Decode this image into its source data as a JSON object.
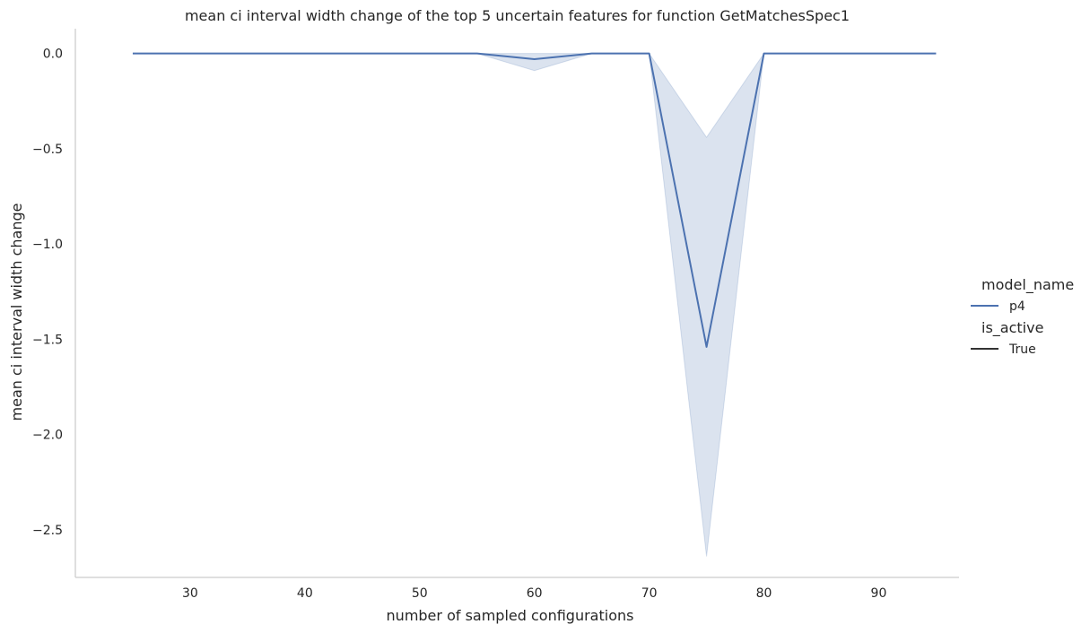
{
  "chart_data": {
    "type": "line",
    "title": "mean ci interval width change of the top 5 uncertain features for function GetMatchesSpec1",
    "xlabel": "number of sampled configurations",
    "ylabel": "mean ci interval width change",
    "xlim": [
      20,
      97
    ],
    "ylim": [
      -2.75,
      0.13
    ],
    "xticks": [
      30,
      40,
      50,
      60,
      70,
      80,
      90
    ],
    "yticks": [
      0.0,
      -0.5,
      -1.0,
      -1.5,
      -2.0,
      -2.5
    ],
    "ytick_labels": [
      "0.0",
      "−0.5",
      "−1.0",
      "−1.5",
      "−2.0",
      "−2.5"
    ],
    "grid": false,
    "legend_placement": "right",
    "legend": {
      "hue_title": "model_name",
      "hue_entries": [
        {
          "label": "p4",
          "color": "#4c72b0"
        }
      ],
      "style_title": "is_active",
      "style_entries": [
        {
          "label": "True",
          "color": "#333333"
        }
      ]
    },
    "series": [
      {
        "name": "p4",
        "color": "#4c72b0",
        "x": [
          25,
          30,
          35,
          40,
          45,
          50,
          55,
          60,
          65,
          70,
          75,
          80,
          85,
          90,
          95
        ],
        "y": [
          0,
          0,
          0,
          0,
          0,
          0,
          0,
          -0.03,
          0,
          0,
          -1.54,
          0,
          0,
          0,
          0
        ],
        "lower": [
          0,
          0,
          0,
          0,
          0,
          0,
          0,
          -0.09,
          0,
          0,
          -2.64,
          0,
          0,
          0,
          0
        ],
        "upper": [
          0,
          0,
          0,
          0,
          0,
          0,
          0,
          0.0,
          0,
          0,
          -0.44,
          0,
          0,
          0,
          0
        ]
      }
    ]
  }
}
